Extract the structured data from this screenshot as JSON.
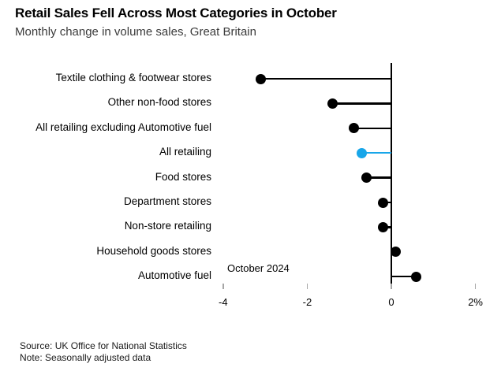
{
  "header": {
    "title": "Retail Sales Fell Across Most Categories in October",
    "subtitle": "Monthly change in volume sales, Great Britain"
  },
  "chart_data": {
    "type": "bar",
    "variant": "horizontal-lollipop",
    "categories": [
      "Textile clothing & footwear stores",
      "Other non-food stores",
      "All retailing excluding Automotive fuel",
      "All retailing",
      "Food stores",
      "Department stores",
      "Non-store retailing",
      "Household goods stores",
      "Automotive fuel"
    ],
    "values": [
      -3.1,
      -1.4,
      -0.9,
      -0.7,
      -0.6,
      -0.2,
      -0.2,
      0.1,
      0.6
    ],
    "unit": "%",
    "highlight_category": "All retailing",
    "highlight_color": "#18a6e9",
    "default_color": "#000000",
    "xlabel": "October 2024",
    "xticks": [
      -4,
      -2,
      0,
      2
    ],
    "xtick_labels": [
      "-4",
      "-2",
      "0",
      "2%"
    ],
    "xlim": [
      -4.3,
      2.6
    ],
    "grid": false,
    "legend": "none",
    "baseline": 0
  },
  "footer": {
    "source": "Source: UK Office for National Statistics",
    "note": "Note: Seasonally adjusted data"
  }
}
